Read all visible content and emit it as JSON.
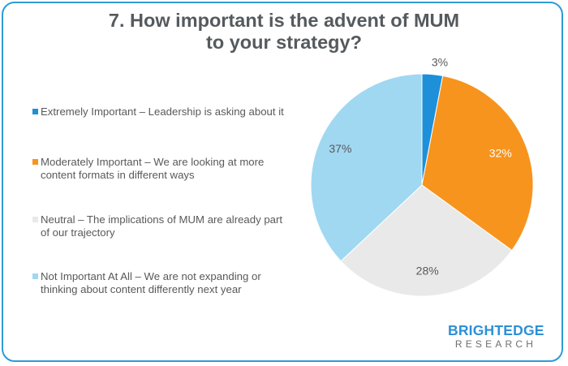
{
  "chart_data": {
    "type": "pie",
    "title": [
      "7. How important is the advent of MUM",
      "to your strategy?"
    ],
    "slices": [
      {
        "label": "Extremely Important – Leadership is asking about it",
        "value": 3,
        "display": "3%",
        "color": "#1e8fd9"
      },
      {
        "label": "Moderately Important  – We are looking at more content formats in different ways",
        "value": 32,
        "display": "32%",
        "color": "#f7941d"
      },
      {
        "label": "Neutral – The implications of MUM are already part of our trajectory",
        "value": 28,
        "display": "28%",
        "color": "#e9e9ea"
      },
      {
        "label": "Not Important At All – We are not expanding or thinking about content differently next year",
        "value": 37,
        "display": "37%",
        "color": "#a0d8f2"
      }
    ],
    "legend_position": "left",
    "legend_lines": [
      [
        "Extremely Important – Leadership is asking about it"
      ],
      [
        "Moderately Important  – We are looking at more",
        "content formats in different ways"
      ],
      [
        "Neutral – The implications of MUM are already part",
        "of our trajectory"
      ],
      [
        "Not Important At All – We are not expanding or",
        "thinking about content differently next year"
      ]
    ],
    "label_colors": [
      "#58595b",
      "#ffffff",
      "#58595b",
      "#58595b"
    ]
  },
  "branding": {
    "name": "BRIGHTEDGE",
    "sub": "RESEARCH"
  }
}
